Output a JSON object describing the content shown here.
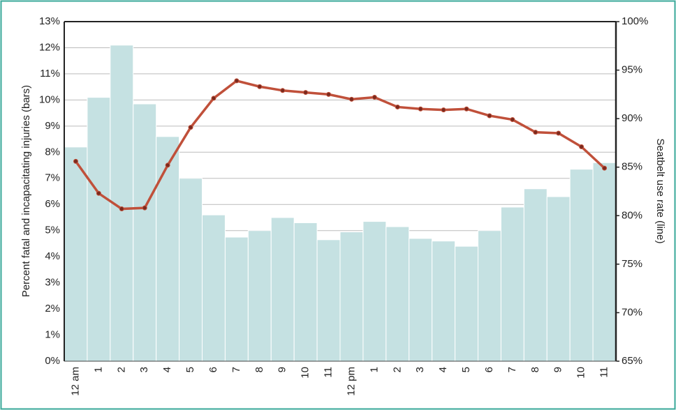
{
  "chart_data": {
    "type": "bar-line",
    "ylabel": "Percent fatal and incapacitating injuries (bars)",
    "y2label": "Seatbelt use rate (line)",
    "categories": [
      "12 am",
      "1",
      "2",
      "3",
      "4",
      "5",
      "6",
      "7",
      "8",
      "9",
      "10",
      "11",
      "12 pm",
      "1",
      "2",
      "3",
      "4",
      "5",
      "6",
      "7",
      "8",
      "9",
      "10",
      "11"
    ],
    "series": [
      {
        "type": "bar",
        "color": "#c5e1e2",
        "values": [
          8.2,
          10.1,
          12.1,
          9.85,
          8.6,
          7.0,
          5.6,
          4.75,
          5.0,
          5.5,
          5.3,
          4.65,
          4.95,
          5.35,
          5.15,
          4.7,
          4.6,
          4.4,
          5.0,
          5.9,
          6.6,
          6.3,
          7.35,
          7.6
        ]
      },
      {
        "type": "line",
        "axis": "y2",
        "color": "#c0503a",
        "marker_color": "#7a2a1e",
        "values": [
          85.6,
          82.3,
          80.7,
          80.8,
          85.2,
          89.1,
          92.1,
          93.9,
          93.3,
          92.9,
          92.7,
          92.5,
          92.0,
          92.2,
          91.2,
          91.0,
          90.9,
          91.0,
          90.3,
          89.9,
          88.6,
          88.5,
          87.1,
          84.9
        ]
      }
    ],
    "ylim": [
      0,
      13
    ],
    "yticks": [
      {
        "value": 0,
        "label": "0%"
      },
      {
        "value": 1,
        "label": "1%"
      },
      {
        "value": 2,
        "label": "2%"
      },
      {
        "value": 3,
        "label": "3%"
      },
      {
        "value": 4,
        "label": "4%"
      },
      {
        "value": 5,
        "label": "5%"
      },
      {
        "value": 6,
        "label": "6%"
      },
      {
        "value": 7,
        "label": "7%"
      },
      {
        "value": 8,
        "label": "8%"
      },
      {
        "value": 9,
        "label": "9%"
      },
      {
        "value": 10,
        "label": "10%"
      },
      {
        "value": 11,
        "label": "11%"
      },
      {
        "value": 12,
        "label": "12%"
      },
      {
        "value": 13,
        "label": "13%"
      }
    ],
    "y2lim": [
      65,
      100
    ],
    "y2ticks": [
      {
        "value": 65,
        "label": "65%"
      },
      {
        "value": 70,
        "label": "70%"
      },
      {
        "value": 75,
        "label": "75%"
      },
      {
        "value": 80,
        "label": "80%"
      },
      {
        "value": 85,
        "label": "85%"
      },
      {
        "value": 90,
        "label": "90%"
      },
      {
        "value": 95,
        "label": "95%"
      },
      {
        "value": 100,
        "label": "100%"
      }
    ],
    "grid": true
  }
}
